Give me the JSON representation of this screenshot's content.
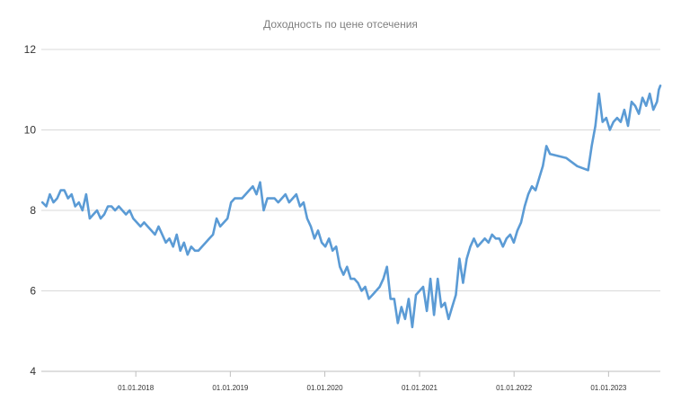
{
  "chart_data": {
    "type": "line",
    "title": "Доходность по цене отсечения",
    "xlabel": "",
    "ylabel": "",
    "ylim": [
      4,
      12
    ],
    "xlim": [
      "2017-01-01",
      "2023-07-20"
    ],
    "yticks": [
      "4",
      "6",
      "8",
      "10",
      "12"
    ],
    "xticks": [
      {
        "date": "2018-01-01",
        "label": "01.01.2018"
      },
      {
        "date": "2019-01-01",
        "label": "01.01.2019"
      },
      {
        "date": "2020-01-01",
        "label": "01.01.2020"
      },
      {
        "date": "2021-01-01",
        "label": "01.01.2021"
      },
      {
        "date": "2022-01-01",
        "label": "01.01.2022"
      },
      {
        "date": "2023-01-01",
        "label": "01.01.2023"
      }
    ],
    "grid": "horizontal",
    "legend": "none",
    "series": [
      {
        "color": "#5b9bd5",
        "points": [
          [
            "2017-01-05",
            8.2
          ],
          [
            "2017-01-20",
            8.1
          ],
          [
            "2017-02-03",
            8.4
          ],
          [
            "2017-02-17",
            8.2
          ],
          [
            "2017-03-03",
            8.3
          ],
          [
            "2017-03-17",
            8.5
          ],
          [
            "2017-03-31",
            8.5
          ],
          [
            "2017-04-14",
            8.3
          ],
          [
            "2017-04-28",
            8.4
          ],
          [
            "2017-05-12",
            8.1
          ],
          [
            "2017-05-26",
            8.2
          ],
          [
            "2017-06-09",
            8.0
          ],
          [
            "2017-06-23",
            8.4
          ],
          [
            "2017-07-07",
            7.8
          ],
          [
            "2017-07-21",
            7.9
          ],
          [
            "2017-08-04",
            8.0
          ],
          [
            "2017-08-18",
            7.8
          ],
          [
            "2017-09-01",
            7.9
          ],
          [
            "2017-09-15",
            8.1
          ],
          [
            "2017-09-29",
            8.1
          ],
          [
            "2017-10-13",
            8.0
          ],
          [
            "2017-10-27",
            8.1
          ],
          [
            "2017-11-10",
            8.0
          ],
          [
            "2017-11-24",
            7.9
          ],
          [
            "2017-12-08",
            8.0
          ],
          [
            "2017-12-22",
            7.8
          ],
          [
            "2018-01-05",
            7.7
          ],
          [
            "2018-01-19",
            7.6
          ],
          [
            "2018-02-02",
            7.7
          ],
          [
            "2018-02-16",
            7.6
          ],
          [
            "2018-03-02",
            7.5
          ],
          [
            "2018-03-16",
            7.4
          ],
          [
            "2018-03-30",
            7.6
          ],
          [
            "2018-04-13",
            7.4
          ],
          [
            "2018-04-27",
            7.2
          ],
          [
            "2018-05-11",
            7.3
          ],
          [
            "2018-05-25",
            7.1
          ],
          [
            "2018-06-08",
            7.4
          ],
          [
            "2018-06-22",
            7.0
          ],
          [
            "2018-07-06",
            7.2
          ],
          [
            "2018-07-20",
            6.9
          ],
          [
            "2018-08-03",
            7.1
          ],
          [
            "2018-08-17",
            7.0
          ],
          [
            "2018-08-31",
            7.0
          ],
          [
            "2018-09-14",
            7.1
          ],
          [
            "2018-09-28",
            7.2
          ],
          [
            "2018-10-12",
            7.3
          ],
          [
            "2018-10-26",
            7.4
          ],
          [
            "2018-11-09",
            7.8
          ],
          [
            "2018-11-23",
            7.6
          ],
          [
            "2018-12-07",
            7.7
          ],
          [
            "2018-12-21",
            7.8
          ],
          [
            "2019-01-04",
            8.2
          ],
          [
            "2019-01-18",
            8.3
          ],
          [
            "2019-02-01",
            8.3
          ],
          [
            "2019-02-15",
            8.3
          ],
          [
            "2019-03-01",
            8.4
          ],
          [
            "2019-03-15",
            8.5
          ],
          [
            "2019-03-29",
            8.6
          ],
          [
            "2019-04-12",
            8.4
          ],
          [
            "2019-04-26",
            8.7
          ],
          [
            "2019-05-10",
            8.0
          ],
          [
            "2019-05-24",
            8.3
          ],
          [
            "2019-06-07",
            8.3
          ],
          [
            "2019-06-21",
            8.3
          ],
          [
            "2019-07-05",
            8.2
          ],
          [
            "2019-07-19",
            8.3
          ],
          [
            "2019-08-02",
            8.4
          ],
          [
            "2019-08-16",
            8.2
          ],
          [
            "2019-08-30",
            8.3
          ],
          [
            "2019-09-13",
            8.4
          ],
          [
            "2019-09-27",
            8.1
          ],
          [
            "2019-10-11",
            8.2
          ],
          [
            "2019-10-25",
            7.8
          ],
          [
            "2019-11-08",
            7.6
          ],
          [
            "2019-11-22",
            7.3
          ],
          [
            "2019-12-06",
            7.5
          ],
          [
            "2019-12-20",
            7.2
          ],
          [
            "2020-01-03",
            7.1
          ],
          [
            "2020-01-17",
            7.3
          ],
          [
            "2020-01-31",
            7.0
          ],
          [
            "2020-02-14",
            7.1
          ],
          [
            "2020-02-28",
            6.6
          ],
          [
            "2020-03-13",
            6.4
          ],
          [
            "2020-03-27",
            6.6
          ],
          [
            "2020-04-10",
            6.3
          ],
          [
            "2020-04-24",
            6.3
          ],
          [
            "2020-05-08",
            6.2
          ],
          [
            "2020-05-22",
            6.0
          ],
          [
            "2020-06-05",
            6.1
          ],
          [
            "2020-06-19",
            5.8
          ],
          [
            "2020-07-03",
            5.9
          ],
          [
            "2020-07-17",
            6.0
          ],
          [
            "2020-07-31",
            6.1
          ],
          [
            "2020-08-14",
            6.3
          ],
          [
            "2020-08-28",
            6.6
          ],
          [
            "2020-09-11",
            5.8
          ],
          [
            "2020-09-25",
            5.8
          ],
          [
            "2020-10-09",
            5.2
          ],
          [
            "2020-10-23",
            5.6
          ],
          [
            "2020-11-06",
            5.3
          ],
          [
            "2020-11-20",
            5.8
          ],
          [
            "2020-12-04",
            5.1
          ],
          [
            "2020-12-18",
            5.9
          ],
          [
            "2021-01-01",
            6.0
          ],
          [
            "2021-01-15",
            6.1
          ],
          [
            "2021-01-29",
            5.5
          ],
          [
            "2021-02-12",
            6.3
          ],
          [
            "2021-02-26",
            5.4
          ],
          [
            "2021-03-12",
            6.3
          ],
          [
            "2021-03-26",
            5.6
          ],
          [
            "2021-04-09",
            5.7
          ],
          [
            "2021-04-23",
            5.3
          ],
          [
            "2021-05-07",
            5.6
          ],
          [
            "2021-05-21",
            5.9
          ],
          [
            "2021-06-04",
            6.8
          ],
          [
            "2021-06-18",
            6.2
          ],
          [
            "2021-07-02",
            6.8
          ],
          [
            "2021-07-16",
            7.1
          ],
          [
            "2021-07-30",
            7.3
          ],
          [
            "2021-08-13",
            7.1
          ],
          [
            "2021-08-27",
            7.2
          ],
          [
            "2021-09-10",
            7.3
          ],
          [
            "2021-09-24",
            7.2
          ],
          [
            "2021-10-08",
            7.4
          ],
          [
            "2021-10-22",
            7.3
          ],
          [
            "2021-11-05",
            7.3
          ],
          [
            "2021-11-19",
            7.1
          ],
          [
            "2021-12-03",
            7.3
          ],
          [
            "2021-12-17",
            7.4
          ],
          [
            "2021-12-31",
            7.2
          ],
          [
            "2022-01-14",
            7.5
          ],
          [
            "2022-01-28",
            7.7
          ],
          [
            "2022-02-11",
            8.1
          ],
          [
            "2022-02-25",
            8.4
          ],
          [
            "2022-03-11",
            8.6
          ],
          [
            "2022-03-25",
            8.5
          ],
          [
            "2022-04-08",
            8.8
          ],
          [
            "2022-04-22",
            9.1
          ],
          [
            "2022-05-06",
            9.6
          ],
          [
            "2022-05-20",
            9.4
          ],
          [
            "2022-07-22",
            9.3
          ],
          [
            "2022-09-02",
            9.1
          ],
          [
            "2022-10-14",
            9.0
          ],
          [
            "2022-10-28",
            9.6
          ],
          [
            "2022-11-11",
            10.1
          ],
          [
            "2022-11-25",
            10.9
          ],
          [
            "2022-12-09",
            10.2
          ],
          [
            "2022-12-23",
            10.3
          ],
          [
            "2023-01-06",
            10.0
          ],
          [
            "2023-01-20",
            10.2
          ],
          [
            "2023-02-03",
            10.3
          ],
          [
            "2023-02-17",
            10.2
          ],
          [
            "2023-03-03",
            10.5
          ],
          [
            "2023-03-17",
            10.1
          ],
          [
            "2023-03-31",
            10.7
          ],
          [
            "2023-04-14",
            10.6
          ],
          [
            "2023-04-28",
            10.4
          ],
          [
            "2023-05-12",
            10.8
          ],
          [
            "2023-05-26",
            10.6
          ],
          [
            "2023-06-09",
            10.9
          ],
          [
            "2023-06-23",
            10.5
          ],
          [
            "2023-07-07",
            10.7
          ],
          [
            "2023-07-14",
            11.0
          ],
          [
            "2023-07-20",
            11.1
          ]
        ]
      }
    ]
  }
}
